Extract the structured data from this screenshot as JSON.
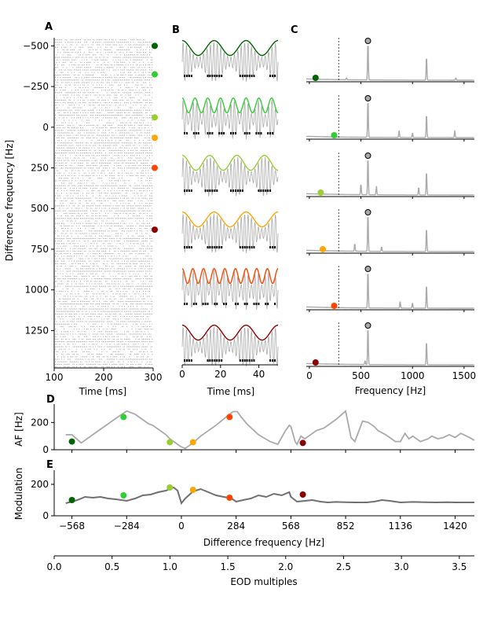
{
  "panel_labels": {
    "a": "A",
    "b": "B",
    "c": "C",
    "d": "D",
    "e": "E"
  },
  "colors": {
    "dot": [
      "#006400",
      "#32cd32",
      "#9acd32",
      "#ffa500",
      "#ff4500",
      "#8b0000"
    ],
    "trace": "#aaaaaa",
    "dark_trace": "#707070",
    "spike": "#000000",
    "raster": "#b4b4b4"
  },
  "chart_data": [
    {
      "panel": "A",
      "type": "raster",
      "xlabel": "Time [ms]",
      "ylabel": "Difference frequency [Hz]",
      "xlim": [
        100,
        300
      ],
      "ylim": [
        -550,
        1480
      ],
      "xticks": [
        "100",
        "200",
        "300"
      ],
      "xtick_values": [
        100,
        200,
        300
      ],
      "yticks": [
        "−500",
        "−250",
        "0",
        "250",
        "500",
        "750",
        "1000",
        "1250"
      ],
      "ytick_values": [
        -500,
        -250,
        0,
        250,
        500,
        750,
        1000,
        1250
      ],
      "marker_df": [
        -500,
        -325,
        -60,
        65,
        250,
        630
      ]
    },
    {
      "panel": "B",
      "type": "line",
      "xlabel": "Time [ms]",
      "xlim": [
        0,
        50
      ],
      "xticks": [
        "0",
        "20",
        "40"
      ],
      "xtick_values": [
        0,
        20,
        40
      ],
      "rows": [
        {
          "df": -500,
          "am_cycles_per_window": 3.0
        },
        {
          "df": -325,
          "am_cycles_per_window": 7.5
        },
        {
          "df": -60,
          "am_cycles_per_window": 3.5
        },
        {
          "df": 65,
          "am_cycles_per_window": 3.0
        },
        {
          "df": 250,
          "am_cycles_per_window": 9.0
        },
        {
          "df": 630,
          "am_cycles_per_window": 3.0
        }
      ]
    },
    {
      "panel": "C",
      "type": "line",
      "xlabel": "Frequency [Hz]",
      "xlim": [
        -30,
        1600
      ],
      "xticks": [
        "0",
        "500",
        "1000",
        "1500"
      ],
      "xtick_values": [
        0,
        500,
        1000,
        1500
      ],
      "eod_hz": 568,
      "dashed_line_hz": 284,
      "rows": [
        {
          "af_hz": 60,
          "peaks": [
            [
              568,
              1.0
            ],
            [
              1136,
              0.62
            ],
            [
              1420,
              0.06
            ],
            [
              360,
              0.05
            ]
          ]
        },
        {
          "af_hz": 240,
          "peaks": [
            [
              568,
              1.0
            ],
            [
              1136,
              0.62
            ],
            [
              870,
              0.18
            ],
            [
              1410,
              0.18
            ],
            [
              1000,
              0.12
            ]
          ]
        },
        {
          "af_hz": 110,
          "peaks": [
            [
              568,
              1.0
            ],
            [
              500,
              0.28
            ],
            [
              650,
              0.22
            ],
            [
              1136,
              0.62
            ],
            [
              1060,
              0.2
            ]
          ]
        },
        {
          "af_hz": 130,
          "peaks": [
            [
              568,
              1.0
            ],
            [
              440,
              0.2
            ],
            [
              700,
              0.12
            ],
            [
              1136,
              0.62
            ]
          ]
        },
        {
          "af_hz": 240,
          "peaks": [
            [
              568,
              1.0
            ],
            [
              1136,
              0.62
            ],
            [
              880,
              0.18
            ],
            [
              1000,
              0.14
            ]
          ]
        },
        {
          "af_hz": 60,
          "peaks": [
            [
              568,
              1.0
            ],
            [
              1136,
              0.62
            ],
            [
              540,
              0.1
            ]
          ]
        }
      ]
    },
    {
      "panel": "D",
      "type": "line",
      "ylabel": "AF [Hz]",
      "ylim": [
        0,
        300
      ],
      "yticks": [
        "0",
        "200"
      ],
      "ytick_values": [
        0,
        200
      ],
      "x": [
        -600,
        -568,
        -520,
        -340,
        -284,
        -240,
        -200,
        -170,
        -150,
        -110,
        -80,
        -60,
        -40,
        -20,
        0,
        20,
        60,
        100,
        180,
        240,
        268,
        290,
        310,
        340,
        400,
        460,
        500,
        540,
        560,
        568,
        590,
        600,
        620,
        640,
        660,
        680,
        700,
        740,
        800,
        852,
        880,
        900,
        940,
        970,
        1000,
        1020,
        1060,
        1090,
        1110,
        1136,
        1160,
        1180,
        1200,
        1240,
        1280,
        1300,
        1330,
        1360,
        1390,
        1420,
        1450,
        1480,
        1520
      ],
      "y": [
        110,
        110,
        50,
        230,
        284,
        260,
        220,
        190,
        180,
        140,
        110,
        80,
        60,
        40,
        20,
        10,
        50,
        100,
        180,
        250,
        280,
        280,
        240,
        190,
        110,
        60,
        40,
        140,
        180,
        170,
        60,
        40,
        100,
        80,
        100,
        120,
        140,
        160,
        220,
        284,
        90,
        60,
        210,
        200,
        170,
        140,
        110,
        80,
        60,
        60,
        120,
        80,
        100,
        60,
        80,
        100,
        80,
        90,
        110,
        90,
        120,
        100,
        70
      ],
      "markers": [
        [
          -568,
          60
        ],
        [
          -300,
          240
        ],
        [
          -60,
          55
        ],
        [
          60,
          55
        ],
        [
          250,
          240
        ],
        [
          630,
          50
        ]
      ]
    },
    {
      "panel": "E",
      "type": "line",
      "xlabel": "Difference frequency [Hz]",
      "ylabel": "Modulation",
      "xlim": [
        -660,
        1520
      ],
      "ylim": [
        0,
        260
      ],
      "xticks": [
        "−568",
        "−284",
        "0",
        "284",
        "568",
        "852",
        "1136",
        "1420"
      ],
      "xtick_values": [
        -568,
        -284,
        0,
        284,
        568,
        852,
        1136,
        1420
      ],
      "yticks": [
        "0",
        "200"
      ],
      "ytick_values": [
        0,
        200
      ],
      "x": [
        -600,
        -568,
        -540,
        -500,
        -460,
        -420,
        -380,
        -340,
        -284,
        -240,
        -200,
        -160,
        -120,
        -80,
        -40,
        -20,
        0,
        20,
        60,
        100,
        140,
        180,
        220,
        260,
        284,
        320,
        360,
        400,
        440,
        480,
        520,
        560,
        568,
        600,
        640,
        680,
        720,
        760,
        800,
        852,
        900,
        960,
        1000,
        1040,
        1080,
        1136,
        1200,
        1260,
        1320,
        1380,
        1420,
        1480,
        1520
      ],
      "y": [
        80,
        90,
        100,
        120,
        115,
        120,
        110,
        105,
        95,
        110,
        130,
        135,
        150,
        160,
        180,
        160,
        80,
        110,
        155,
        170,
        150,
        130,
        120,
        110,
        90,
        100,
        110,
        130,
        120,
        140,
        130,
        150,
        120,
        90,
        95,
        100,
        90,
        85,
        88,
        86,
        85,
        85,
        90,
        100,
        95,
        85,
        88,
        86,
        85,
        86,
        85,
        85,
        85
      ],
      "markers": [
        [
          -568,
          100
        ],
        [
          -300,
          130
        ],
        [
          -60,
          180
        ],
        [
          60,
          165
        ],
        [
          250,
          115
        ],
        [
          630,
          135
        ]
      ]
    },
    {
      "panel": "E-secondary-axis",
      "type": "axis",
      "xlabel": "EOD multiples",
      "xlim": [
        0,
        3.63
      ],
      "xticks": [
        "0.0",
        "0.5",
        "1.0",
        "1.5",
        "2.0",
        "2.5",
        "3.0",
        "3.5"
      ],
      "xtick_values": [
        0,
        0.5,
        1.0,
        1.5,
        2.0,
        2.5,
        3.0,
        3.5
      ]
    }
  ]
}
